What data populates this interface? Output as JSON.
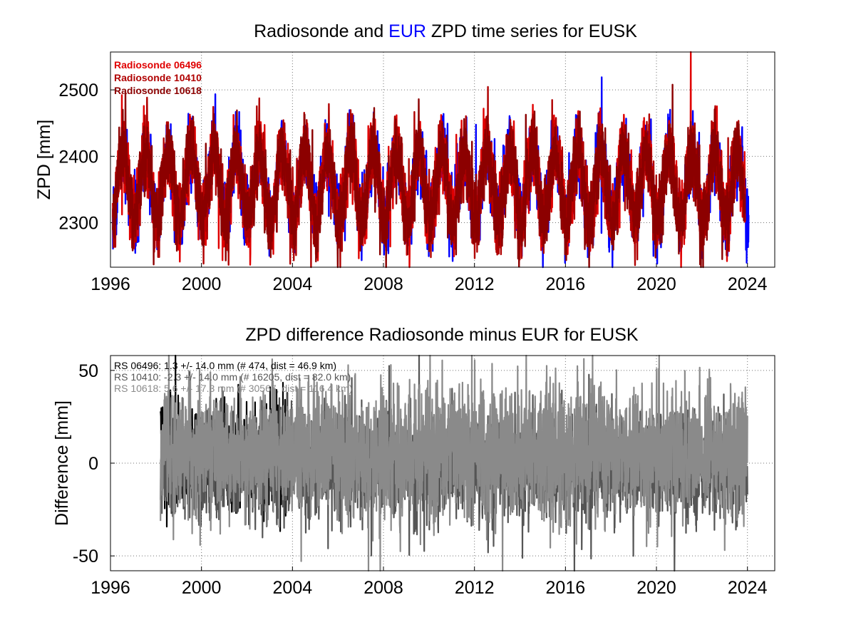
{
  "chart_data": [
    {
      "type": "line",
      "title": {
        "part1": "Radiosonde and ",
        "part2": "EUR",
        "part3": " ZPD time series for EUSK",
        "highlight_color": "#0000ff"
      },
      "xlabel": "",
      "ylabel": "ZPD [mm]",
      "xlim": [
        1996,
        2025.2
      ],
      "ylim": [
        2233,
        2557
      ],
      "xticks": [
        "1996",
        "2000",
        "2004",
        "2008",
        "2012",
        "2016",
        "2020",
        "2024"
      ],
      "yticks": [
        "2300",
        "2400",
        "2500"
      ],
      "grid": true,
      "legend_position": "top-left",
      "series": [
        {
          "name": "EUR",
          "color": "#0000ff",
          "start_year": 1996.1,
          "end_year": 2024.05,
          "mean": 2357,
          "amplitude": 52,
          "noise": 28
        },
        {
          "name": "Radiosonde 06496",
          "color": "#e00000",
          "start_year": 1996.1,
          "end_year": 2023.9,
          "mean": 2357,
          "amplitude": 52,
          "noise": 28
        },
        {
          "name": "Radiosonde 10410",
          "color": "#b00000",
          "start_year": 1996.1,
          "end_year": 2023.9,
          "mean": 2357,
          "amplitude": 52,
          "noise": 28
        },
        {
          "name": "Radiosonde 10618",
          "color": "#8c0000",
          "start_year": 1996.1,
          "end_year": 2023.9,
          "mean": 2357,
          "amplitude": 52,
          "noise": 28
        }
      ]
    },
    {
      "type": "line",
      "title": "ZPD difference Radiosonde minus EUR for EUSK",
      "xlabel": "",
      "ylabel": "Difference [mm]",
      "xlim": [
        1996,
        2025.2
      ],
      "ylim": [
        -58,
        58
      ],
      "xticks": [
        "1996",
        "2000",
        "2004",
        "2008",
        "2012",
        "2016",
        "2020",
        "2024"
      ],
      "yticks": [
        "-50",
        "0",
        "50"
      ],
      "grid": true,
      "legend_position": "top-left",
      "series": [
        {
          "name": "RS 06496: 1.3 +/- 14.0 mm (# 474, dist =  46.9 km)",
          "color": "#000000",
          "start_year": 1998.2,
          "end_year": 2004.0,
          "mean": 1.3,
          "noise": 14.0
        },
        {
          "name": "RS 10410: -2.3 +/- 14.0 mm (# 16205, dist =  82.0 km)",
          "color": "#555555",
          "start_year": 1998.2,
          "end_year": 2024.0,
          "mean": -2.3,
          "noise": 14.0
        },
        {
          "name": "RS 10618: 5.6 +/- 17.3 mm (# 30567, dist = 116.4 km)",
          "color": "#8a8a8a",
          "start_year": 1998.2,
          "end_year": 2024.0,
          "mean": 5.6,
          "noise": 17.3
        }
      ]
    }
  ]
}
